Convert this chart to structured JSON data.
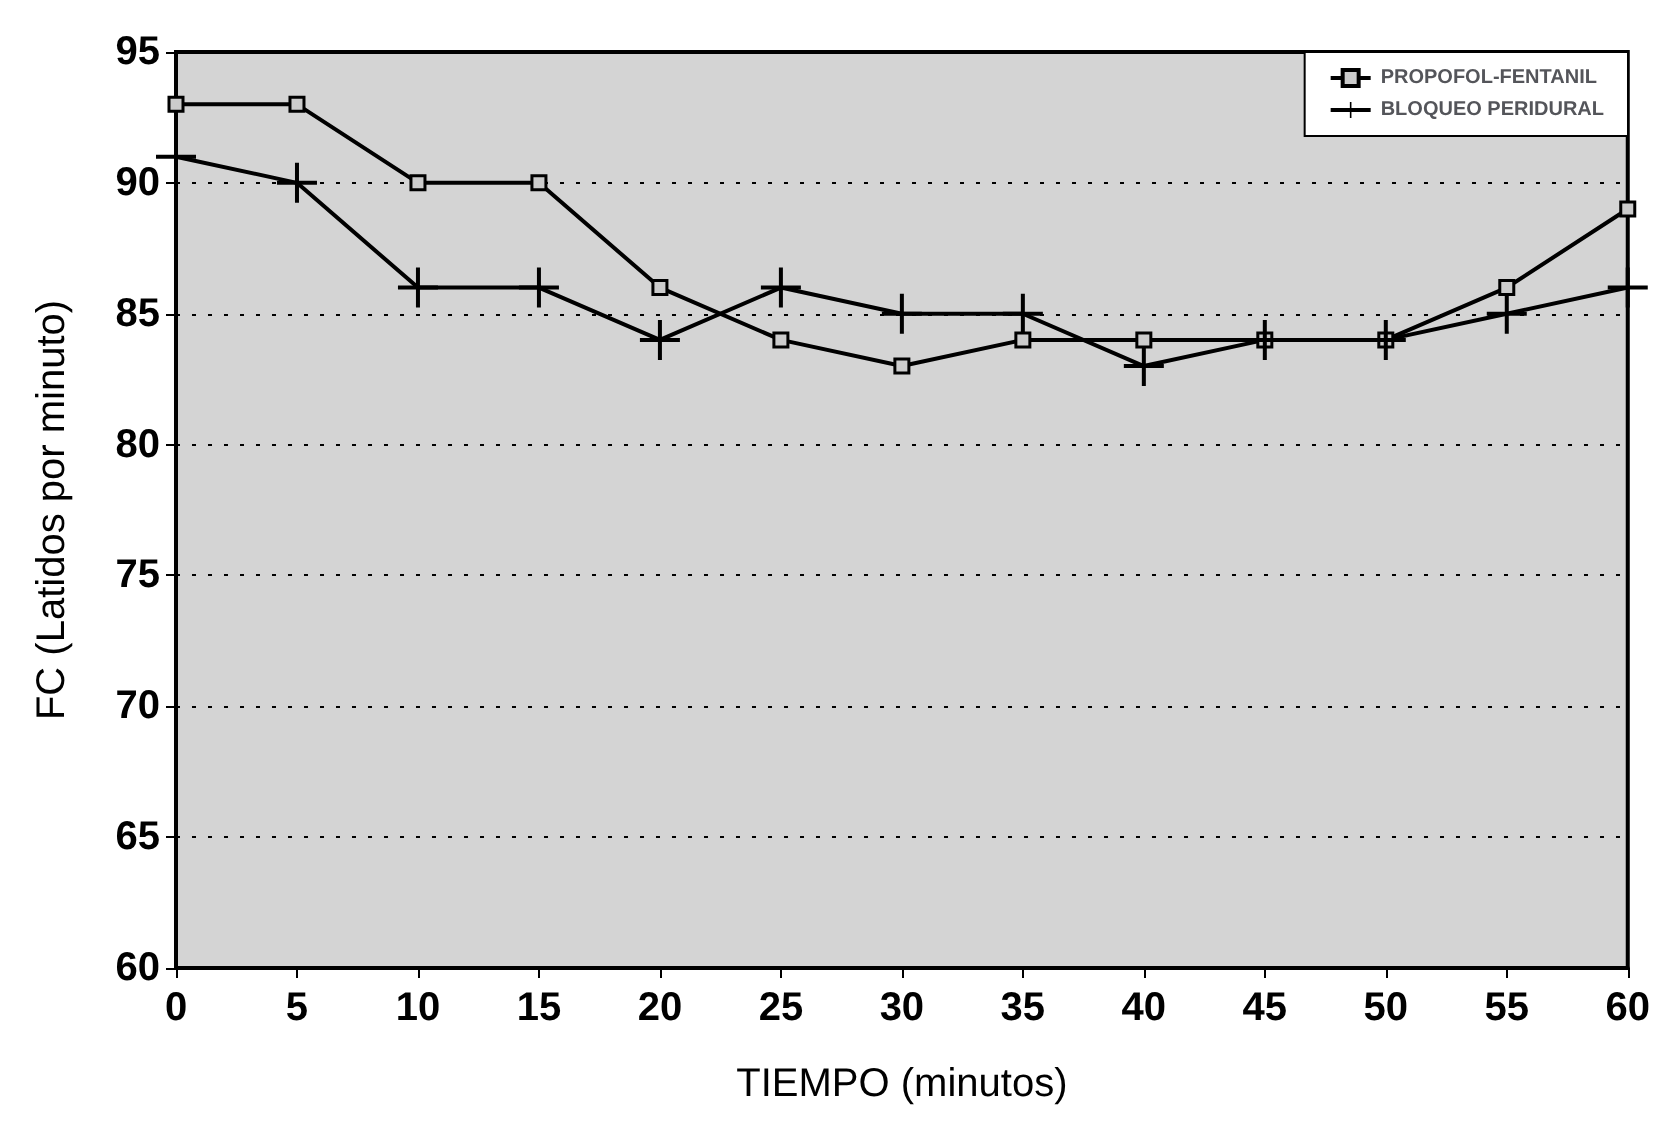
{
  "chart_data": {
    "type": "line",
    "xlabel": "TIEMPO (minutos)",
    "ylabel": "FC (Latidos por minuto)",
    "x": [
      0,
      5,
      10,
      15,
      20,
      25,
      30,
      35,
      40,
      45,
      50,
      55,
      60
    ],
    "xlim": [
      0,
      60
    ],
    "xticks": [
      0,
      5,
      10,
      15,
      20,
      25,
      30,
      35,
      40,
      45,
      50,
      55,
      60
    ],
    "ylim": [
      60,
      95
    ],
    "yticks": [
      60,
      65,
      70,
      75,
      80,
      85,
      90,
      95
    ],
    "grid": "y",
    "legend": "top right",
    "line_style": "solid",
    "series": [
      {
        "name": "PROPOFOL-FENTANIL",
        "color": "#000000",
        "marker": "square",
        "values": [
          93,
          93,
          90,
          90,
          86,
          84,
          83,
          84,
          84,
          84,
          84,
          86,
          89
        ]
      },
      {
        "name": "BLOQUEO PERIDURAL",
        "color": "#000000",
        "marker": "cross",
        "values": [
          91,
          90,
          86,
          86,
          84,
          86,
          85,
          85,
          83,
          84,
          84,
          85,
          86
        ]
      }
    ]
  }
}
